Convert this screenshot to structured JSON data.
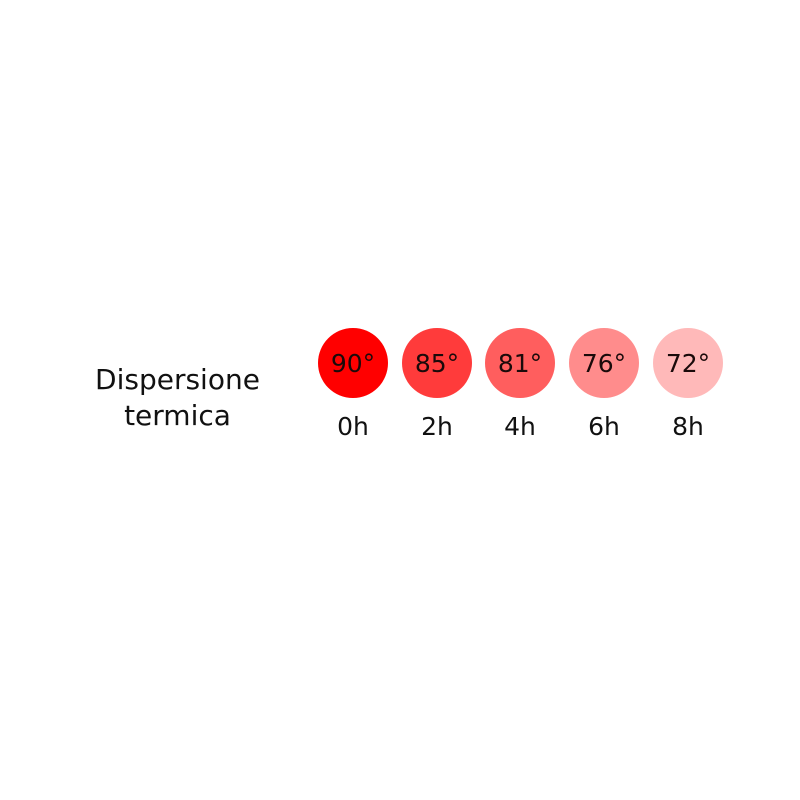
{
  "title_lines": [
    "Dispersione",
    "termica"
  ],
  "steps": [
    {
      "temp": "90°",
      "time": "0h",
      "color": "#ff0000"
    },
    {
      "temp": "85°",
      "time": "2h",
      "color": "#ff3b3b"
    },
    {
      "temp": "81°",
      "time": "4h",
      "color": "#ff5e5e"
    },
    {
      "temp": "76°",
      "time": "6h",
      "color": "#ff8c8c"
    },
    {
      "temp": "72°",
      "time": "8h",
      "color": "#ffb9b9"
    }
  ]
}
